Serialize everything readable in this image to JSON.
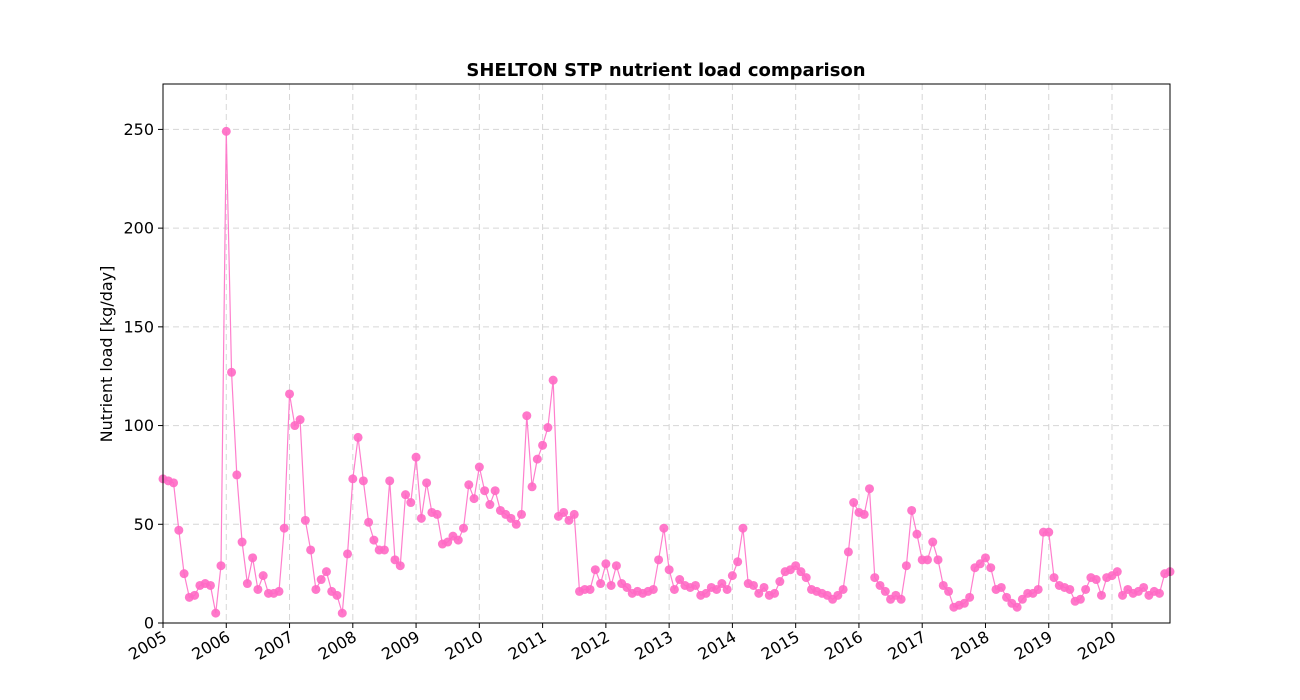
{
  "chart_data": {
    "type": "line",
    "title": "SHELTON STP nutrient load comparison",
    "xlabel": "",
    "ylabel": "Nutrient load [kg/day]",
    "x_range": [
      "2005-01",
      "2020-12"
    ],
    "ylim": [
      0,
      273
    ],
    "y_ticks": [
      0,
      50,
      100,
      150,
      200,
      250
    ],
    "x_ticks": [
      "2005",
      "2006",
      "2007",
      "2008",
      "2009",
      "2010",
      "2011",
      "2012",
      "2013",
      "2014",
      "2015",
      "2016",
      "2017",
      "2018",
      "2019",
      "2020"
    ],
    "grid": true,
    "marker": "circle",
    "color": "#ff69c4",
    "series": [
      {
        "name": "",
        "x": [
          "2005-01",
          "2005-02",
          "2005-03",
          "2005-04",
          "2005-05",
          "2005-06",
          "2005-07",
          "2005-08",
          "2005-09",
          "2005-10",
          "2005-11",
          "2005-12",
          "2006-01",
          "2006-02",
          "2006-03",
          "2006-04",
          "2006-05",
          "2006-06",
          "2006-07",
          "2006-08",
          "2006-09",
          "2006-10",
          "2006-11",
          "2006-12",
          "2007-01",
          "2007-02",
          "2007-03",
          "2007-04",
          "2007-05",
          "2007-06",
          "2007-07",
          "2007-08",
          "2007-09",
          "2007-10",
          "2007-11",
          "2007-12",
          "2008-01",
          "2008-02",
          "2008-03",
          "2008-04",
          "2008-05",
          "2008-06",
          "2008-07",
          "2008-08",
          "2008-09",
          "2008-10",
          "2008-11",
          "2008-12",
          "2009-01",
          "2009-02",
          "2009-03",
          "2009-04",
          "2009-05",
          "2009-06",
          "2009-07",
          "2009-08",
          "2009-09",
          "2009-10",
          "2009-11",
          "2009-12",
          "2010-01",
          "2010-02",
          "2010-03",
          "2010-04",
          "2010-05",
          "2010-06",
          "2010-07",
          "2010-08",
          "2010-09",
          "2010-10",
          "2010-11",
          "2010-12",
          "2011-01",
          "2011-02",
          "2011-03",
          "2011-04",
          "2011-05",
          "2011-06",
          "2011-07",
          "2011-08",
          "2011-09",
          "2011-10",
          "2011-11",
          "2011-12",
          "2012-01",
          "2012-02",
          "2012-03",
          "2012-04",
          "2012-05",
          "2012-06",
          "2012-07",
          "2012-08",
          "2012-09",
          "2012-10",
          "2012-11",
          "2012-12",
          "2013-01",
          "2013-02",
          "2013-03",
          "2013-04",
          "2013-05",
          "2013-06",
          "2013-07",
          "2013-08",
          "2013-09",
          "2013-10",
          "2013-11",
          "2013-12",
          "2014-01",
          "2014-02",
          "2014-03",
          "2014-04",
          "2014-05",
          "2014-06",
          "2014-07",
          "2014-08",
          "2014-09",
          "2014-10",
          "2014-11",
          "2014-12",
          "2015-01",
          "2015-02",
          "2015-03",
          "2015-04",
          "2015-05",
          "2015-06",
          "2015-07",
          "2015-08",
          "2015-09",
          "2015-10",
          "2015-11",
          "2015-12",
          "2016-01",
          "2016-02",
          "2016-03",
          "2016-04",
          "2016-05",
          "2016-06",
          "2016-07",
          "2016-08",
          "2016-09",
          "2016-10",
          "2016-11",
          "2016-12",
          "2017-01",
          "2017-02",
          "2017-03",
          "2017-04",
          "2017-05",
          "2017-06",
          "2017-07",
          "2017-08",
          "2017-09",
          "2017-10",
          "2017-11",
          "2017-12",
          "2018-01",
          "2018-02",
          "2018-03",
          "2018-04",
          "2018-05",
          "2018-06",
          "2018-07",
          "2018-08",
          "2018-09",
          "2018-10",
          "2018-11",
          "2018-12",
          "2019-01",
          "2019-02",
          "2019-03",
          "2019-04",
          "2019-05",
          "2019-06",
          "2019-07",
          "2019-08",
          "2019-09",
          "2019-10",
          "2019-11",
          "2019-12",
          "2020-01",
          "2020-02",
          "2020-03",
          "2020-04",
          "2020-05",
          "2020-06",
          "2020-07",
          "2020-08",
          "2020-09",
          "2020-10",
          "2020-11",
          "2020-12"
        ],
        "y": [
          73,
          72,
          71,
          47,
          25,
          13,
          14,
          19,
          20,
          19,
          5,
          29,
          249,
          127,
          75,
          41,
          20,
          33,
          17,
          24,
          15,
          15,
          16,
          48,
          116,
          100,
          103,
          52,
          37,
          17,
          22,
          26,
          16,
          14,
          5,
          35,
          73,
          94,
          72,
          51,
          42,
          37,
          37,
          72,
          32,
          29,
          65,
          61,
          84,
          53,
          71,
          56,
          55,
          40,
          41,
          44,
          42,
          48,
          70,
          63,
          79,
          67,
          60,
          67,
          57,
          55,
          53,
          50,
          55,
          105,
          69,
          83,
          90,
          99,
          123,
          54,
          56,
          52,
          55,
          16,
          17,
          17,
          27,
          20,
          30,
          19,
          29,
          20,
          18,
          15,
          16,
          15,
          16,
          17,
          32,
          48,
          27,
          17,
          22,
          19,
          18,
          19,
          14,
          15,
          18,
          17,
          20,
          17,
          24,
          31,
          48,
          20,
          19,
          15,
          18,
          14,
          15,
          21,
          26,
          27,
          29,
          26,
          23,
          17,
          16,
          15,
          14,
          12,
          14,
          17,
          36,
          61,
          56,
          55,
          68,
          23,
          19,
          16,
          12,
          14,
          12,
          29,
          57,
          45,
          32,
          32,
          41,
          32,
          19,
          16,
          8,
          9,
          10,
          13,
          28,
          30,
          33,
          28,
          17,
          18,
          13,
          10,
          8,
          12,
          15,
          15,
          17,
          46,
          46,
          23,
          19,
          18,
          17,
          11,
          12,
          17,
          23,
          22,
          14,
          23,
          24,
          26,
          14,
          17,
          15,
          16,
          18,
          14,
          16,
          15,
          25,
          26
        ]
      }
    ]
  }
}
